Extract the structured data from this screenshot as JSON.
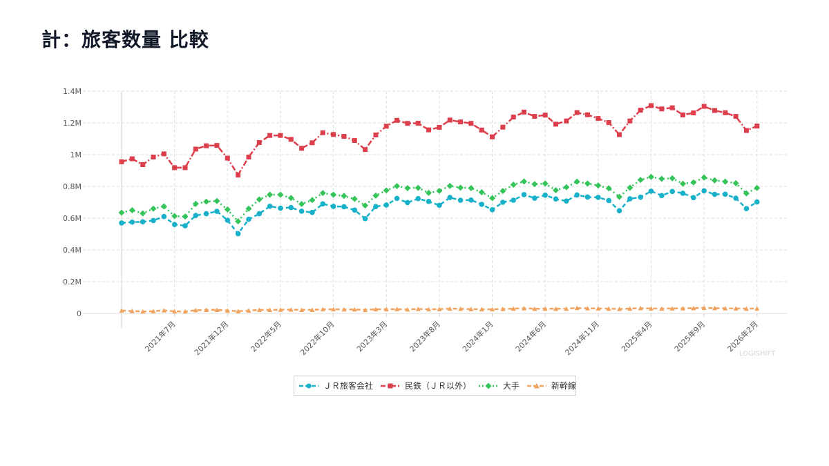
{
  "page": {
    "title": "計：旅客数量 比較",
    "watermark": "LOGISHIFT"
  },
  "colors": {
    "jr": "#17b1c9",
    "private": "#dd3e4b",
    "major": "#35c45a",
    "shinkansen": "#f0a35e",
    "grid": "#dcdcdc",
    "axis": "#cfcfcf"
  },
  "chart_data": {
    "type": "line",
    "title": "計：旅客数量 比較",
    "xlabel": "",
    "ylabel": "",
    "ylim": [
      0,
      1400000
    ],
    "yticks": [
      0,
      200000,
      400000,
      600000,
      800000,
      1000000,
      1200000,
      1400000
    ],
    "ytick_labels": [
      "0",
      "0.2M",
      "0.4M",
      "0.6M",
      "0.8M",
      "1M",
      "1.2M",
      "1.4M"
    ],
    "x_start": "2021-01",
    "x": [
      "2021-01",
      "2021-02",
      "2021-03",
      "2021-04",
      "2021-05",
      "2021-06",
      "2021-07",
      "2021-08",
      "2021-09",
      "2021-10",
      "2021-11",
      "2021-12",
      "2022-01",
      "2022-02",
      "2022-03",
      "2022-04",
      "2022-05",
      "2022-06",
      "2022-07",
      "2022-08",
      "2022-09",
      "2022-10",
      "2022-11",
      "2022-12",
      "2023-01",
      "2023-02",
      "2023-03",
      "2023-04",
      "2023-05",
      "2023-06",
      "2023-07",
      "2023-08",
      "2023-09",
      "2023-10",
      "2023-11",
      "2023-12",
      "2024-01",
      "2024-02",
      "2024-03",
      "2024-04",
      "2024-05",
      "2024-06",
      "2024-07",
      "2024-08",
      "2024-09",
      "2024-10",
      "2024-11",
      "2024-12",
      "2025-01",
      "2025-02",
      "2025-03",
      "2025-04",
      "2025-05",
      "2025-06",
      "2025-07",
      "2025-08",
      "2025-09",
      "2025-10",
      "2025-11",
      "2025-12",
      "2026-01"
    ],
    "xticks": [
      {
        "x": "2021-06",
        "label": "2021年7月"
      },
      {
        "x": "2021-11",
        "label": "2021年12月"
      },
      {
        "x": "2022-04",
        "label": "2022年5月"
      },
      {
        "x": "2022-09",
        "label": "2022年10月"
      },
      {
        "x": "2023-02",
        "label": "2023年3月"
      },
      {
        "x": "2023-07",
        "label": "2023年8月"
      },
      {
        "x": "2023-12",
        "label": "2024年1月"
      },
      {
        "x": "2024-05",
        "label": "2024年6月"
      },
      {
        "x": "2024-10",
        "label": "2024年11月"
      },
      {
        "x": "2025-03",
        "label": "2025年4月"
      },
      {
        "x": "2025-08",
        "label": "2025年9月"
      },
      {
        "x": "2026-01",
        "label": "2026年2月"
      }
    ],
    "grid": true,
    "legend_position": "bottom-center",
    "series": [
      {
        "name": "ＪＲ旅客会社",
        "color": "#17b1c9",
        "marker": "circle",
        "dash": "dash",
        "values": [
          570000,
          575000,
          577000,
          585000,
          610000,
          560000,
          552000,
          617000,
          628000,
          643000,
          587000,
          502000,
          593000,
          628000,
          675000,
          663000,
          667000,
          644000,
          636000,
          690000,
          674000,
          672000,
          651000,
          597000,
          673000,
          683000,
          724000,
          698000,
          723000,
          705000,
          681000,
          730000,
          713000,
          714000,
          687000,
          653000,
          700000,
          713000,
          748000,
          726000,
          745000,
          721000,
          708000,
          746000,
          733000,
          731000,
          711000,
          647000,
          722000,
          732000,
          770000,
          742000,
          768000,
          757000,
          729000,
          772000,
          750000,
          751000,
          726000,
          660000,
          702000
        ]
      },
      {
        "name": "民鉄（ＪＲ以外）",
        "color": "#dd3e4b",
        "marker": "square",
        "dash": "dashdot",
        "values": [
          955000,
          974000,
          937000,
          985000,
          1005000,
          918000,
          918000,
          1035000,
          1056000,
          1058000,
          978000,
          872000,
          985000,
          1076000,
          1121000,
          1121000,
          1096000,
          1040000,
          1075000,
          1138000,
          1127000,
          1115000,
          1089000,
          1032000,
          1124000,
          1179000,
          1216000,
          1197000,
          1198000,
          1156000,
          1172000,
          1218000,
          1206000,
          1197000,
          1155000,
          1112000,
          1173000,
          1237000,
          1268000,
          1241000,
          1249000,
          1192000,
          1212000,
          1265000,
          1251000,
          1228000,
          1202000,
          1126000,
          1212000,
          1280000,
          1309000,
          1288000,
          1295000,
          1250000,
          1263000,
          1304000,
          1278000,
          1264000,
          1241000,
          1152000,
          1180000
        ]
      },
      {
        "name": "大手",
        "color": "#35c45a",
        "marker": "diamond",
        "dash": "dot",
        "values": [
          635000,
          650000,
          630000,
          660000,
          674000,
          613000,
          610000,
          690000,
          704000,
          708000,
          655000,
          580000,
          660000,
          718000,
          748000,
          748000,
          727000,
          689000,
          714000,
          758000,
          748000,
          740000,
          721000,
          680000,
          742000,
          775000,
          802000,
          789000,
          791000,
          759000,
          772000,
          803000,
          792000,
          789000,
          763000,
          726000,
          771000,
          811000,
          831000,
          814000,
          818000,
          776000,
          795000,
          830000,
          818000,
          806000,
          788000,
          734000,
          792000,
          841000,
          860000,
          848000,
          851000,
          817000,
          825000,
          856000,
          838000,
          830000,
          820000,
          756000,
          790000
        ]
      },
      {
        "name": "新幹線",
        "color": "#f0a35e",
        "marker": "triangle",
        "dash": "dash",
        "values": [
          18000,
          15000,
          12000,
          14000,
          19000,
          13000,
          12000,
          20000,
          22000,
          22000,
          18000,
          14000,
          18000,
          22000,
          22000,
          23000,
          24000,
          22000,
          22000,
          26000,
          26000,
          25000,
          25000,
          22000,
          26000,
          26000,
          27000,
          25000,
          28000,
          26000,
          27000,
          30000,
          29000,
          27000,
          26000,
          26000,
          28000,
          30000,
          32000,
          29000,
          30000,
          29000,
          30000,
          34000,
          32000,
          31000,
          30000,
          28000,
          30000,
          33000,
          31000,
          30000,
          31000,
          32000,
          33000,
          35000,
          33000,
          32000,
          31000,
          30000,
          31000
        ]
      }
    ]
  }
}
